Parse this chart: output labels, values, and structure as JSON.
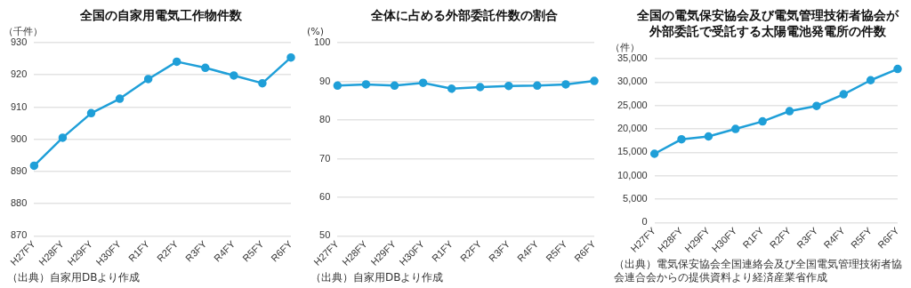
{
  "chart_data": [
    {
      "type": "line",
      "title": "全国の自家用電気工作物件数",
      "ylabel": "（千件）",
      "categories": [
        "H27FY",
        "H28FY",
        "H29FY",
        "H30FY",
        "R1FY",
        "R2FY",
        "R3FY",
        "R4FY",
        "R5FY",
        "R6FY"
      ],
      "series": [
        {
          "color": "#1f9fd8",
          "values": [
            891.8,
            900.5,
            908.1,
            912.6,
            918.7,
            924.1,
            922.2,
            919.8,
            917.4,
            925.4
          ]
        }
      ],
      "ylim": [
        870,
        930
      ],
      "yticks": [
        870,
        880,
        890,
        900,
        910,
        920,
        930
      ],
      "grid": "y",
      "marker": "circle",
      "line_style": "solid",
      "legend": false,
      "annotations": [
        "（出典）自家用DBより作成"
      ]
    },
    {
      "type": "line",
      "title": "全体に占める外部委託件数の割合",
      "ylabel": "(%)",
      "categories": [
        "H27FY",
        "H28FY",
        "H29FY",
        "H30FY",
        "R1FY",
        "R2FY",
        "R3FY",
        "R4FY",
        "R5FY",
        "R6FY"
      ],
      "series": [
        {
          "color": "#1f9fd8",
          "values": [
            88.9,
            89.2,
            88.9,
            89.6,
            88.1,
            88.5,
            88.8,
            88.9,
            89.2,
            90.1
          ]
        }
      ],
      "ylim": [
        50,
        100
      ],
      "yticks": [
        50,
        60,
        70,
        80,
        90,
        100
      ],
      "grid": "y",
      "marker": "circle",
      "line_style": "solid",
      "legend": false,
      "annotations": [
        "（出典）自家用DBより作成"
      ]
    },
    {
      "type": "line",
      "title": "全国の電気保安協会及び電気管理技術者協会が外部委託で受託する太陽電池発電所の件数",
      "ylabel": "（件）",
      "categories": [
        "H27FY",
        "H28FY",
        "H29FY",
        "H30FY",
        "R1FY",
        "R2FY",
        "R3FY",
        "R4FY",
        "R5FY",
        "R6FY"
      ],
      "series": [
        {
          "color": "#1f9fd8",
          "values": [
            14700,
            17800,
            18400,
            20000,
            21600,
            23800,
            24900,
            27400,
            30400,
            32800
          ]
        }
      ],
      "ylim": [
        0,
        35000
      ],
      "yticks": [
        {
          "value": 0,
          "label": "0"
        },
        {
          "value": 5000,
          "label": "5,000"
        },
        {
          "value": 10000,
          "label": "10,000"
        },
        {
          "value": 15000,
          "label": "15,000"
        },
        {
          "value": 20000,
          "label": "20,000"
        },
        {
          "value": 25000,
          "label": "25,000"
        },
        {
          "value": 30000,
          "label": "30,000"
        },
        {
          "value": 35000,
          "label": "35,000"
        }
      ],
      "grid": "y",
      "marker": "circle",
      "line_style": "solid",
      "legend": false,
      "annotations": [
        "（出典）電気保安協会全国連絡会及び全国電気管理技術者協会連合会からの提供資料より経済産業省作成"
      ]
    }
  ]
}
